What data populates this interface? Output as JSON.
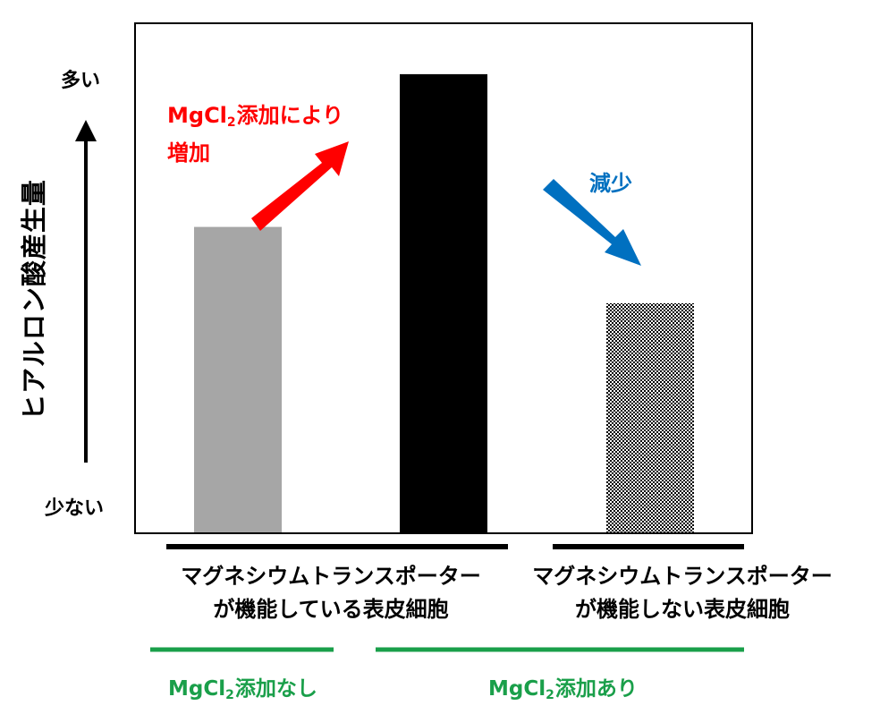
{
  "chart_data": {
    "type": "bar",
    "title": "",
    "ylabel": "ヒアルロン酸産生量",
    "y_ticks": {
      "high": "多い",
      "low": "少ない"
    },
    "categories": [
      "マグネシウムトランスポーターが機能している表皮細胞・MgCl2添加なし",
      "マグネシウムトランスポーターが機能している表皮細胞・MgCl2添加あり",
      "マグネシウムトランスポーターが機能しない表皮細胞・MgCl2添加あり"
    ],
    "values": [
      0.6,
      0.9,
      0.45
    ],
    "ylim": [
      0,
      1
    ],
    "value_note": "relative values estimated from bar heights (unlabeled axis)",
    "bar_fills": [
      "#a6a6a6",
      "#000000",
      "checker-pattern"
    ],
    "annotations": {
      "increase": {
        "line1_pre": "MgCl",
        "line1_sub": "2",
        "line1_post": "添加により",
        "line2": "増加",
        "color": "#ff0000"
      },
      "decrease": {
        "text": "減少",
        "color": "#0070c0"
      }
    },
    "groups": {
      "functional": {
        "line1": "マグネシウムトランスポーター",
        "line2": "が機能している表皮細胞"
      },
      "nonfunctional": {
        "line1": "マグネシウムトランスポーター",
        "line2": "が機能しない表皮細胞"
      }
    },
    "conditions": {
      "without": {
        "pre": "MgCl",
        "sub": "2",
        "post": "添加なし"
      },
      "with": {
        "pre": "MgCl",
        "sub": "2",
        "post": "添加あり"
      },
      "color": "#1a9f4a"
    }
  }
}
